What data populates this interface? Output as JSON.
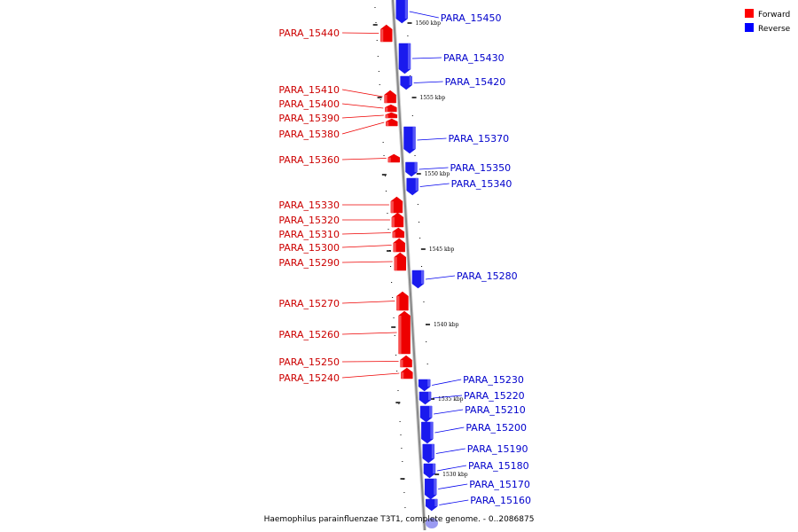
{
  "caption": "Haemophilus parainfluenzae T3T1, complete genome. - 0..2086875",
  "legend": {
    "forward": {
      "label": "Forward",
      "color": "#ff0000"
    },
    "reverse": {
      "label": "Reverse",
      "color": "#0000ff"
    }
  },
  "colors": {
    "forward_fill": "#ee0000",
    "forward_text": "#cc0000",
    "reverse_fill": "#1a1aee",
    "reverse_text": "#0000cc",
    "backbone": "#888888"
  },
  "kbp_ticks": [
    "1560 kbp",
    "1555 kbp",
    "1550 kbp",
    "1545 kbp",
    "1540 kbp",
    "1535 kbp",
    "1530 kbp"
  ],
  "genes": [
    {
      "label": "PARA_15450",
      "strand": "reverse"
    },
    {
      "label": "PARA_15440",
      "strand": "forward"
    },
    {
      "label": "PARA_15430",
      "strand": "reverse"
    },
    {
      "label": "PARA_15420",
      "strand": "reverse"
    },
    {
      "label": "PARA_15410",
      "strand": "forward"
    },
    {
      "label": "PARA_15400",
      "strand": "forward"
    },
    {
      "label": "PARA_15390",
      "strand": "forward"
    },
    {
      "label": "PARA_15380",
      "strand": "forward"
    },
    {
      "label": "PARA_15370",
      "strand": "reverse"
    },
    {
      "label": "PARA_15360",
      "strand": "forward"
    },
    {
      "label": "PARA_15350",
      "strand": "reverse"
    },
    {
      "label": "PARA_15340",
      "strand": "reverse"
    },
    {
      "label": "PARA_15330",
      "strand": "forward"
    },
    {
      "label": "PARA_15320",
      "strand": "forward"
    },
    {
      "label": "PARA_15310",
      "strand": "forward"
    },
    {
      "label": "PARA_15300",
      "strand": "forward"
    },
    {
      "label": "PARA_15290",
      "strand": "forward"
    },
    {
      "label": "PARA_15280",
      "strand": "reverse"
    },
    {
      "label": "PARA_15270",
      "strand": "forward"
    },
    {
      "label": "PARA_15260",
      "strand": "forward"
    },
    {
      "label": "PARA_15250",
      "strand": "forward"
    },
    {
      "label": "PARA_15240",
      "strand": "forward"
    },
    {
      "label": "PARA_15230",
      "strand": "reverse"
    },
    {
      "label": "PARA_15220",
      "strand": "reverse"
    },
    {
      "label": "PARA_15210",
      "strand": "reverse"
    },
    {
      "label": "PARA_15200",
      "strand": "reverse"
    },
    {
      "label": "PARA_15190",
      "strand": "reverse"
    },
    {
      "label": "PARA_15180",
      "strand": "reverse"
    },
    {
      "label": "PARA_15170",
      "strand": "reverse"
    },
    {
      "label": "PARA_15160",
      "strand": "reverse"
    }
  ]
}
